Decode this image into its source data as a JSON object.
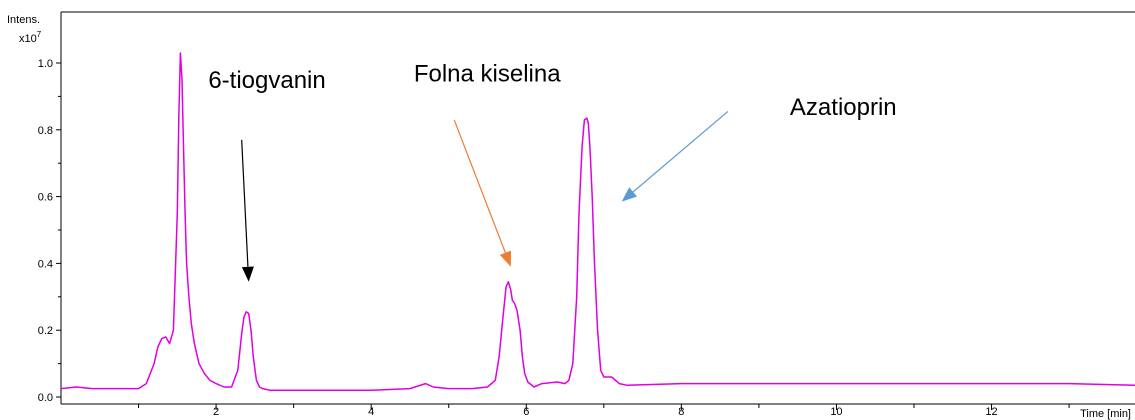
{
  "chart_data": {
    "type": "line",
    "ylabel": "Intens.",
    "y_multiplier": "x10",
    "y_multiplier_exp": "7",
    "xlabel": "Time [min]",
    "xlim": [
      0.0,
      13.85
    ],
    "ylim": [
      0.0,
      1.1
    ],
    "x_ticks": [
      2,
      4,
      6,
      8,
      10,
      12
    ],
    "y_ticks": [
      0.0,
      0.2,
      0.4,
      0.6,
      0.8,
      1.0
    ],
    "y_tick_labels": [
      "0.0",
      "0.2",
      "0.4",
      "0.6",
      "0.8",
      "1.0"
    ],
    "grid": false,
    "series": [
      {
        "color": "#e000e0",
        "x": [
          0.0,
          0.2,
          0.4,
          0.6,
          0.8,
          1.0,
          1.1,
          1.2,
          1.25,
          1.3,
          1.35,
          1.4,
          1.45,
          1.5,
          1.52,
          1.54,
          1.56,
          1.58,
          1.6,
          1.62,
          1.65,
          1.68,
          1.72,
          1.78,
          1.85,
          1.92,
          2.0,
          2.1,
          2.2,
          2.28,
          2.33,
          2.36,
          2.39,
          2.42,
          2.45,
          2.48,
          2.52,
          2.56,
          2.6,
          2.7,
          3.0,
          3.5,
          4.0,
          4.5,
          4.7,
          4.8,
          5.0,
          5.3,
          5.5,
          5.6,
          5.65,
          5.7,
          5.74,
          5.77,
          5.8,
          5.82,
          5.85,
          5.88,
          5.92,
          5.95,
          5.98,
          6.02,
          6.1,
          6.2,
          6.4,
          6.5,
          6.55,
          6.6,
          6.65,
          6.68,
          6.72,
          6.75,
          6.78,
          6.8,
          6.82,
          6.85,
          6.88,
          6.92,
          6.96,
          7.0,
          7.05,
          7.1,
          7.2,
          7.3,
          8.0,
          9.0,
          10.0,
          11.0,
          12.0,
          13.0,
          13.85
        ],
        "y": [
          0.025,
          0.03,
          0.025,
          0.025,
          0.025,
          0.025,
          0.04,
          0.1,
          0.15,
          0.175,
          0.18,
          0.16,
          0.2,
          0.55,
          0.85,
          1.03,
          0.95,
          0.75,
          0.55,
          0.4,
          0.3,
          0.22,
          0.16,
          0.1,
          0.07,
          0.05,
          0.04,
          0.03,
          0.03,
          0.08,
          0.19,
          0.24,
          0.255,
          0.25,
          0.2,
          0.12,
          0.05,
          0.03,
          0.025,
          0.02,
          0.02,
          0.02,
          0.02,
          0.025,
          0.04,
          0.03,
          0.025,
          0.025,
          0.03,
          0.05,
          0.12,
          0.24,
          0.33,
          0.345,
          0.32,
          0.29,
          0.28,
          0.26,
          0.2,
          0.12,
          0.07,
          0.045,
          0.03,
          0.04,
          0.045,
          0.04,
          0.05,
          0.1,
          0.3,
          0.55,
          0.75,
          0.83,
          0.835,
          0.82,
          0.75,
          0.6,
          0.4,
          0.2,
          0.08,
          0.06,
          0.06,
          0.06,
          0.04,
          0.035,
          0.04,
          0.04,
          0.04,
          0.04,
          0.04,
          0.04,
          0.035
        ]
      }
    ],
    "annotations": [
      {
        "text": "6-tiogvanin",
        "text_x": 1.9,
        "text_y": 0.925,
        "arrow_from": [
          2.33,
          0.77
        ],
        "arrow_to": [
          2.42,
          0.345
        ],
        "color": "#000000"
      },
      {
        "text": "Folna kiselina",
        "text_x": 4.55,
        "text_y": 0.945,
        "arrow_from": [
          5.07,
          0.83
        ],
        "arrow_to": [
          5.8,
          0.39
        ],
        "color": "#ed7d31"
      },
      {
        "text": "Azatioprin",
        "text_x": 9.4,
        "text_y": 0.845,
        "arrow_from": [
          8.6,
          0.855
        ],
        "arrow_to": [
          7.23,
          0.585
        ],
        "color": "#5b9bd5"
      }
    ]
  }
}
